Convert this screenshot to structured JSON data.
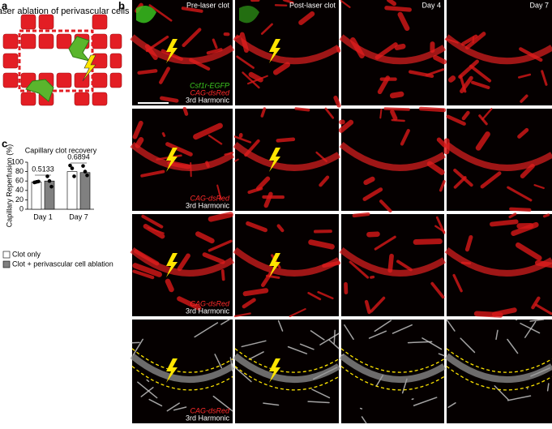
{
  "panel_a": {
    "letter": "a",
    "title": "Laser ablation of perivascular cells + clot"
  },
  "panel_b": {
    "letter": "b",
    "columns": [
      "Pre-laser clot",
      "Post-laser clot",
      "Day 4",
      "Day 7"
    ],
    "rows": [
      {
        "labels": [
          "Csf1r-EGFP",
          "CAG-dsRed",
          "3rd Harmonic"
        ]
      },
      {
        "labels": [
          "CAG-dsRed",
          "3rd Harmonic"
        ]
      },
      {
        "labels": [
          "CAG-dsRed",
          "3rd Harmonic"
        ]
      },
      {
        "labels": [
          "CAG-dsRed",
          "3rd Harmonic"
        ]
      }
    ]
  },
  "panel_c": {
    "letter": "c"
  },
  "chart_data": {
    "type": "bar",
    "title": "Capillary clot recovery",
    "y_label": "Capillary Reperfusion (%)",
    "categories": [
      "Day 1",
      "Day 7"
    ],
    "series": [
      {
        "name": "Clot only",
        "color": "#ffffff",
        "values": [
          58,
          80
        ],
        "points": [
          [
            57,
            58,
            59
          ],
          [
            93,
            87,
            70
          ]
        ]
      },
      {
        "name": "Clot + perivascular cell ablation",
        "color": "#808080",
        "values": [
          60,
          78
        ],
        "points": [
          [
            70,
            60,
            48
          ],
          [
            92,
            80,
            72
          ]
        ]
      }
    ],
    "annotations": [
      "0.5133",
      "0.6894"
    ],
    "ylim": [
      0,
      100
    ],
    "yticks": [
      0,
      20,
      40,
      60,
      80,
      100
    ]
  }
}
